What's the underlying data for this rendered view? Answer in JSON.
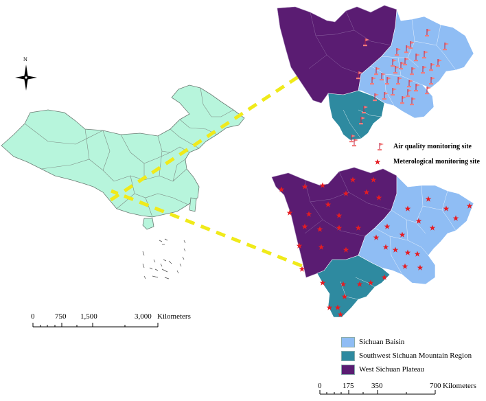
{
  "compass": {
    "north_label": "N"
  },
  "colors": {
    "china_fill": "#b7f5dc",
    "sichuan_basin": "#8fbdf4",
    "southwest_mountain": "#2e8aa0",
    "west_plateau": "#5a1c72",
    "connector": "#f0ea1a",
    "air_marker": "#f27d7d",
    "met_marker": "#e51c23"
  },
  "monitoring_legend": {
    "air_quality": "Air quality monitoring site",
    "meteorological": "Meterological monitoring site",
    "air_icon": "flag-icon",
    "met_icon": "star-icon"
  },
  "region_legend": [
    {
      "name": "Sichuan Baisin",
      "color": "#8fbdf4"
    },
    {
      "name": "Southwest Sichuan Mountain Region",
      "color": "#2e8aa0"
    },
    {
      "name": "West Sichuan Plateau",
      "color": "#5a1c72"
    }
  ],
  "scalebar_china": {
    "ticks": [
      "0",
      "750",
      "1,500",
      "3,000"
    ],
    "unit": "Kilometers"
  },
  "scalebar_sichuan": {
    "ticks": [
      "0",
      "175",
      "350",
      "700"
    ],
    "unit": "Kilometers"
  }
}
